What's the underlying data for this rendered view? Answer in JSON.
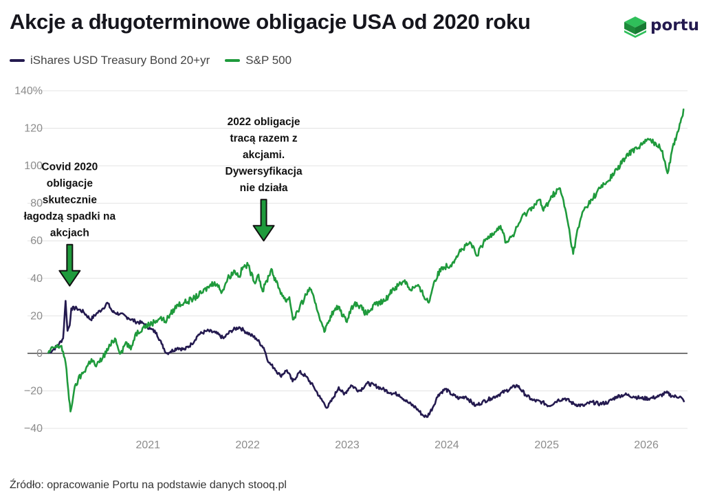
{
  "title": "Akcje a długoterminowe obligacje USA od 2020 roku",
  "logo_text": "portu",
  "source": "Źródło: opracowanie Portu na podstawie danych stooq.pl",
  "colors": {
    "bond": "#241a4f",
    "sp": "#1f9a3c",
    "arrow": "#1f9a3c"
  },
  "chart_data": {
    "type": "line",
    "title": "Akcje a długoterminowe obligacje USA od 2020 roku",
    "xlabel": "",
    "ylabel": "",
    "ylim": [
      -40,
      140
    ],
    "xlim": [
      "2020-01-01",
      "2026-06-01"
    ],
    "yticks": [
      -40,
      -20,
      0,
      20,
      40,
      60,
      80,
      100,
      120,
      140
    ],
    "ytick_labels": [
      "−40",
      "−20",
      "0",
      "20",
      "40",
      "60",
      "80",
      "100",
      "120",
      "140%"
    ],
    "xticks": [
      "2021",
      "2022",
      "2023",
      "2024",
      "2025",
      "2026"
    ],
    "grid": true,
    "legend_position": "top-left",
    "series": [
      {
        "name": "iShares USD Treasury Bond 20+yr",
        "color": "#241a4f",
        "points": [
          [
            "2020-01-01",
            0
          ],
          [
            "2020-01-20",
            2
          ],
          [
            "2020-02-10",
            5
          ],
          [
            "2020-02-25",
            8
          ],
          [
            "2020-03-05",
            28
          ],
          [
            "2020-03-12",
            12
          ],
          [
            "2020-03-20",
            15
          ],
          [
            "2020-03-26",
            24
          ],
          [
            "2020-04-15",
            24
          ],
          [
            "2020-05-10",
            22
          ],
          [
            "2020-06-05",
            18
          ],
          [
            "2020-06-25",
            21
          ],
          [
            "2020-07-20",
            24
          ],
          [
            "2020-08-05",
            27
          ],
          [
            "2020-08-25",
            22
          ],
          [
            "2020-09-20",
            21
          ],
          [
            "2020-10-20",
            19
          ],
          [
            "2020-11-15",
            17
          ],
          [
            "2020-12-15",
            16
          ],
          [
            "2021-01-10",
            13
          ],
          [
            "2021-02-01",
            11
          ],
          [
            "2021-02-20",
            5
          ],
          [
            "2021-03-10",
            0
          ],
          [
            "2021-03-25",
            1
          ],
          [
            "2021-04-20",
            3
          ],
          [
            "2021-05-15",
            2
          ],
          [
            "2021-06-10",
            5
          ],
          [
            "2021-07-05",
            10
          ],
          [
            "2021-08-05",
            12
          ],
          [
            "2021-09-05",
            11
          ],
          [
            "2021-10-05",
            8
          ],
          [
            "2021-11-01",
            12
          ],
          [
            "2021-12-01",
            14
          ],
          [
            "2021-12-20",
            12
          ],
          [
            "2022-01-10",
            10
          ],
          [
            "2022-02-01",
            8
          ],
          [
            "2022-03-01",
            3
          ],
          [
            "2022-03-20",
            -5
          ],
          [
            "2022-04-10",
            -8
          ],
          [
            "2022-05-01",
            -12
          ],
          [
            "2022-05-25",
            -9
          ],
          [
            "2022-06-15",
            -15
          ],
          [
            "2022-07-10",
            -10
          ],
          [
            "2022-08-01",
            -12
          ],
          [
            "2022-09-01",
            -18
          ],
          [
            "2022-09-25",
            -24
          ],
          [
            "2022-10-20",
            -29
          ],
          [
            "2022-11-10",
            -24
          ],
          [
            "2022-12-01",
            -18
          ],
          [
            "2022-12-20",
            -22
          ],
          [
            "2023-01-15",
            -17
          ],
          [
            "2023-02-15",
            -20
          ],
          [
            "2023-03-15",
            -16
          ],
          [
            "2023-04-10",
            -17
          ],
          [
            "2023-05-10",
            -19
          ],
          [
            "2023-06-10",
            -21
          ],
          [
            "2023-07-10",
            -22
          ],
          [
            "2023-08-10",
            -26
          ],
          [
            "2023-09-10",
            -29
          ],
          [
            "2023-10-05",
            -33
          ],
          [
            "2023-10-20",
            -34
          ],
          [
            "2023-11-10",
            -29
          ],
          [
            "2023-12-01",
            -22
          ],
          [
            "2023-12-27",
            -19
          ],
          [
            "2024-01-20",
            -22
          ],
          [
            "2024-02-15",
            -24
          ],
          [
            "2024-03-10",
            -23
          ],
          [
            "2024-04-15",
            -28
          ],
          [
            "2024-05-10",
            -26
          ],
          [
            "2024-06-10",
            -24
          ],
          [
            "2024-07-10",
            -22
          ],
          [
            "2024-08-05",
            -20
          ],
          [
            "2024-09-15",
            -17
          ],
          [
            "2024-10-15",
            -22
          ],
          [
            "2024-11-10",
            -25
          ],
          [
            "2024-12-15",
            -26
          ],
          [
            "2025-01-10",
            -28
          ],
          [
            "2025-02-10",
            -25
          ],
          [
            "2025-03-10",
            -24
          ],
          [
            "2025-04-10",
            -27
          ],
          [
            "2025-05-15",
            -28
          ],
          [
            "2025-06-15",
            -26
          ],
          [
            "2025-07-15",
            -27
          ],
          [
            "2025-08-15",
            -26
          ],
          [
            "2025-09-15",
            -23
          ],
          [
            "2025-10-15",
            -22
          ],
          [
            "2025-11-15",
            -23
          ],
          [
            "2025-12-15",
            -24
          ],
          [
            "2026-01-15",
            -24
          ],
          [
            "2026-02-15",
            -23
          ],
          [
            "2026-03-15",
            -21
          ],
          [
            "2026-04-10",
            -23
          ],
          [
            "2026-05-05",
            -23
          ],
          [
            "2026-05-20",
            -26
          ]
        ]
      },
      {
        "name": "S&P 500",
        "color": "#1f9a3c",
        "points": [
          [
            "2020-01-01",
            0
          ],
          [
            "2020-01-20",
            3
          ],
          [
            "2020-02-19",
            4
          ],
          [
            "2020-03-05",
            -5
          ],
          [
            "2020-03-15",
            -20
          ],
          [
            "2020-03-23",
            -31
          ],
          [
            "2020-04-05",
            -20
          ],
          [
            "2020-04-20",
            -14
          ],
          [
            "2020-05-10",
            -10
          ],
          [
            "2020-06-08",
            -3
          ],
          [
            "2020-06-25",
            -7
          ],
          [
            "2020-07-20",
            -2
          ],
          [
            "2020-08-15",
            4
          ],
          [
            "2020-09-02",
            8
          ],
          [
            "2020-09-23",
            0
          ],
          [
            "2020-10-12",
            6
          ],
          [
            "2020-10-30",
            2
          ],
          [
            "2020-11-15",
            10
          ],
          [
            "2020-12-15",
            14
          ],
          [
            "2021-01-15",
            16
          ],
          [
            "2021-02-15",
            19
          ],
          [
            "2021-03-05",
            17
          ],
          [
            "2021-03-25",
            21
          ],
          [
            "2021-04-20",
            26
          ],
          [
            "2021-05-15",
            27
          ],
          [
            "2021-06-15",
            29
          ],
          [
            "2021-07-15",
            32
          ],
          [
            "2021-08-15",
            36
          ],
          [
            "2021-09-02",
            38
          ],
          [
            "2021-09-30",
            33
          ],
          [
            "2021-10-20",
            40
          ],
          [
            "2021-11-15",
            44
          ],
          [
            "2021-12-01",
            41
          ],
          [
            "2021-12-15",
            46
          ],
          [
            "2022-01-03",
            47
          ],
          [
            "2022-01-25",
            38
          ],
          [
            "2022-02-10",
            42
          ],
          [
            "2022-02-25",
            33
          ],
          [
            "2022-03-29",
            45
          ],
          [
            "2022-04-15",
            38
          ],
          [
            "2022-05-20",
            28
          ],
          [
            "2022-06-03",
            30
          ],
          [
            "2022-06-16",
            18
          ],
          [
            "2022-07-10",
            24
          ],
          [
            "2022-08-16",
            35
          ],
          [
            "2022-09-05",
            27
          ],
          [
            "2022-09-30",
            16
          ],
          [
            "2022-10-12",
            12
          ],
          [
            "2022-11-01",
            20
          ],
          [
            "2022-11-30",
            25
          ],
          [
            "2022-12-28",
            17
          ],
          [
            "2023-01-15",
            24
          ],
          [
            "2023-02-05",
            27
          ],
          [
            "2023-03-12",
            21
          ],
          [
            "2023-04-15",
            26
          ],
          [
            "2023-05-20",
            28
          ],
          [
            "2023-06-15",
            34
          ],
          [
            "2023-07-31",
            39
          ],
          [
            "2023-08-20",
            34
          ],
          [
            "2023-09-15",
            36
          ],
          [
            "2023-10-27",
            27
          ],
          [
            "2023-11-15",
            38
          ],
          [
            "2023-12-15",
            46
          ],
          [
            "2024-01-15",
            47
          ],
          [
            "2024-02-15",
            54
          ],
          [
            "2024-03-28",
            59
          ],
          [
            "2024-04-19",
            52
          ],
          [
            "2024-05-20",
            60
          ],
          [
            "2024-06-15",
            64
          ],
          [
            "2024-07-16",
            68
          ],
          [
            "2024-08-05",
            59
          ],
          [
            "2024-09-05",
            64
          ],
          [
            "2024-09-30",
            72
          ],
          [
            "2024-11-08",
            78
          ],
          [
            "2024-12-06",
            82
          ],
          [
            "2024-12-20",
            76
          ],
          [
            "2025-01-20",
            84
          ],
          [
            "2025-02-19",
            88
          ],
          [
            "2025-03-13",
            75
          ],
          [
            "2025-04-08",
            53
          ],
          [
            "2025-04-20",
            63
          ],
          [
            "2025-05-15",
            76
          ],
          [
            "2025-06-15",
            82
          ],
          [
            "2025-07-15",
            88
          ],
          [
            "2025-08-15",
            92
          ],
          [
            "2025-09-15",
            98
          ],
          [
            "2025-10-15",
            104
          ],
          [
            "2025-11-10",
            108
          ],
          [
            "2025-12-10",
            111
          ],
          [
            "2026-01-10",
            114
          ],
          [
            "2026-02-05",
            112
          ],
          [
            "2026-03-01",
            108
          ],
          [
            "2026-03-20",
            96
          ],
          [
            "2026-04-05",
            108
          ],
          [
            "2026-04-25",
            118
          ],
          [
            "2026-05-12",
            126
          ],
          [
            "2026-05-20",
            130
          ]
        ]
      }
    ],
    "annotations": [
      {
        "text_lines": [
          "Covid 2020",
          "obligacje",
          "skutecznie",
          "łagodzą spadki na",
          "akcjach"
        ],
        "target_x": "2020-03-20",
        "target_y": 36
      },
      {
        "text_lines": [
          "2022 obligacje",
          "tracą razem z",
          "akcjami.",
          "Dywersyfikacja",
          "nie działa"
        ],
        "target_x": "2022-03-01",
        "target_y": 60
      }
    ]
  }
}
